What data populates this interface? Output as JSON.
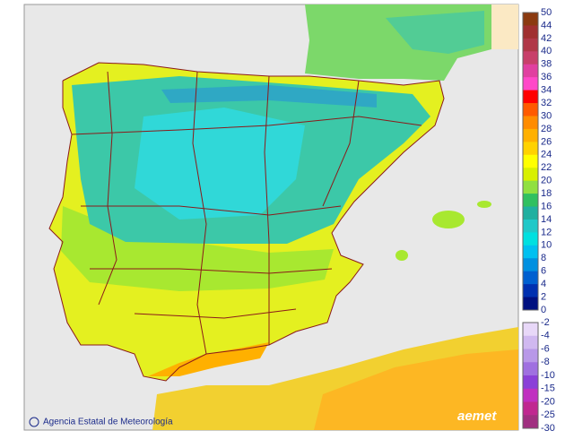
{
  "credit": "Agencia Estatal de Meteorología",
  "logo": "aemet",
  "legend": {
    "positive": {
      "ticks": [
        50,
        44,
        42,
        40,
        38,
        36,
        34,
        32,
        30,
        28,
        26,
        24,
        22,
        20,
        18,
        16,
        14,
        12,
        10,
        8,
        6,
        4,
        2,
        0
      ],
      "colors": [
        "#8b3a10",
        "#a03030",
        "#b03848",
        "#c8406a",
        "#e040a0",
        "#ff48c8",
        "#ff0000",
        "#ff5a00",
        "#ff8c00",
        "#ffb000",
        "#ffd200",
        "#ffff00",
        "#d8f000",
        "#90e040",
        "#30c060",
        "#20b0a0",
        "#20c8c8",
        "#00e0e0",
        "#00c0f0",
        "#0090e0",
        "#0060d0",
        "#0030b0",
        "#001080"
      ]
    },
    "negative": {
      "ticks": [
        -2,
        -4,
        -6,
        -8,
        -10,
        -15,
        -20,
        -25,
        -30
      ],
      "colors": [
        "#e8d8f8",
        "#d0b8f0",
        "#b898e8",
        "#9f70e0",
        "#8a40d8",
        "#c030c0",
        "#c02890",
        "#a03080"
      ]
    }
  }
}
